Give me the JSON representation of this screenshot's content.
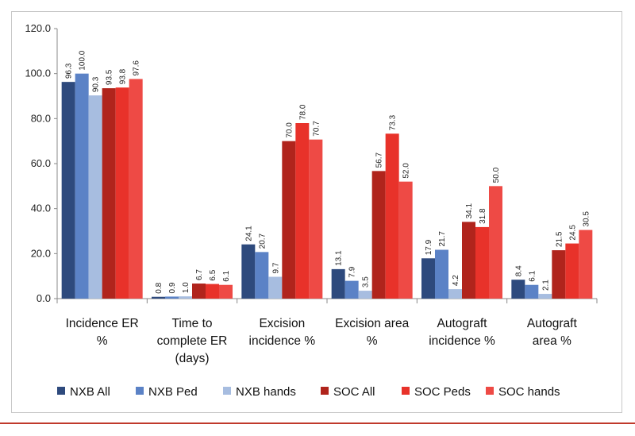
{
  "chart_data": {
    "type": "bar",
    "title": "",
    "xlabel": "",
    "ylabel": "",
    "ylim": [
      0,
      120
    ],
    "yticks": [
      "0.0",
      "20.0",
      "40.0",
      "60.0",
      "80.0",
      "100.0",
      "120.0"
    ],
    "categories": [
      "Incidence ER %",
      "Time to complete ER (days)",
      "Excision incidence %",
      "Excision area %",
      "Autograft incidence %",
      "Autograft area %"
    ],
    "category_lines": [
      [
        "Incidence ER",
        "%"
      ],
      [
        "Time to",
        "complete ER",
        "(days)"
      ],
      [
        "Excision",
        "incidence %"
      ],
      [
        "Excision area",
        "%"
      ],
      [
        "Autograft",
        "incidence %"
      ],
      [
        "Autograft",
        "area %"
      ]
    ],
    "series": [
      {
        "name": "NXB All",
        "color": "#2e4a7d",
        "values": [
          96.3,
          0.8,
          24.1,
          13.1,
          17.9,
          8.4
        ]
      },
      {
        "name": "NXB Ped",
        "color": "#5b82c6",
        "values": [
          100.0,
          0.9,
          20.7,
          7.9,
          21.7,
          6.1
        ]
      },
      {
        "name": "NXB hands",
        "color": "#a7bde0",
        "values": [
          90.3,
          1.0,
          9.7,
          3.5,
          4.2,
          2.1
        ]
      },
      {
        "name": "SOC All",
        "color": "#b0241c",
        "values": [
          93.5,
          6.7,
          70.0,
          56.7,
          34.1,
          21.5
        ]
      },
      {
        "name": "SOC Peds",
        "color": "#e8322a",
        "values": [
          93.8,
          6.5,
          78.0,
          73.3,
          31.8,
          24.5
        ]
      },
      {
        "name": "SOC hands",
        "color": "#ee4a45",
        "values": [
          97.6,
          6.1,
          70.7,
          52.0,
          50.0,
          30.5
        ]
      }
    ],
    "grid": false,
    "legend": "bottom"
  }
}
